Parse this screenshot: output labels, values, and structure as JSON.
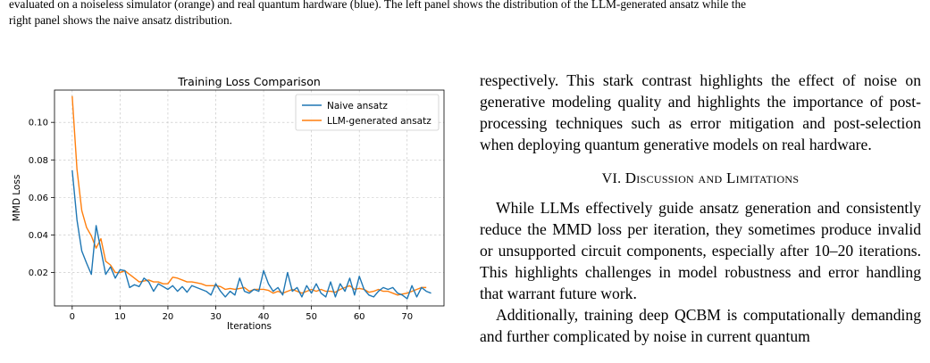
{
  "caption": {
    "line1": "evaluated on a noiseless simulator (orange) and real quantum hardware (blue). The left panel shows the distribution of the LLM-generated ansatz while the",
    "line2": "right panel shows the naive ansatz distribution."
  },
  "figure": {
    "title": "Training Loss Comparison",
    "xlabel": "Iterations",
    "ylabel": "MMD Loss"
  },
  "chart_data": {
    "type": "line",
    "title": "Training Loss Comparison",
    "xlabel": "Iterations",
    "ylabel": "MMD Loss",
    "xlim": [
      -3.7,
      77.7
    ],
    "ylim": [
      0.0022,
      0.1172
    ],
    "xticks": [
      0,
      10,
      20,
      30,
      40,
      50,
      60,
      70
    ],
    "yticks": [
      0.02,
      0.04,
      0.06,
      0.08,
      0.1
    ],
    "ytick_labels": [
      "0.02",
      "0.04",
      "0.06",
      "0.08",
      "0.10"
    ],
    "grid": true,
    "legend_position": "top-right",
    "series": [
      {
        "name": "Naive ansatz",
        "color": "#1f77b4",
        "values": [
          0.0745,
          0.048,
          0.0315,
          0.025,
          0.019,
          0.045,
          0.032,
          0.019,
          0.023,
          0.017,
          0.0215,
          0.021,
          0.012,
          0.0135,
          0.0125,
          0.017,
          0.015,
          0.01,
          0.014,
          0.0125,
          0.011,
          0.013,
          0.01,
          0.0125,
          0.0095,
          0.013,
          0.012,
          0.011,
          0.01,
          0.008,
          0.014,
          0.01,
          0.007,
          0.01,
          0.008,
          0.017,
          0.01,
          0.009,
          0.011,
          0.01,
          0.021,
          0.014,
          0.01,
          0.012,
          0.008,
          0.02,
          0.01,
          0.012,
          0.007,
          0.013,
          0.009,
          0.014,
          0.009,
          0.007,
          0.015,
          0.007,
          0.014,
          0.01,
          0.017,
          0.008,
          0.018,
          0.011,
          0.008,
          0.007,
          0.01,
          0.012,
          0.011,
          0.012,
          0.009,
          0.008,
          0.006,
          0.013,
          0.007,
          0.012,
          0.01,
          0.009
        ]
      },
      {
        "name": "LLM-generated ansatz",
        "color": "#ff7f0e",
        "values": [
          0.114,
          0.075,
          0.053,
          0.044,
          0.0395,
          0.033,
          0.038,
          0.026,
          0.024,
          0.02,
          0.02,
          0.021,
          0.019,
          0.017,
          0.015,
          0.0155,
          0.016,
          0.015,
          0.015,
          0.014,
          0.014,
          0.0175,
          0.017,
          0.016,
          0.015,
          0.015,
          0.0145,
          0.014,
          0.013,
          0.013,
          0.013,
          0.0125,
          0.011,
          0.0115,
          0.011,
          0.0115,
          0.012,
          0.01,
          0.011,
          0.011,
          0.011,
          0.0105,
          0.009,
          0.01,
          0.009,
          0.01,
          0.011,
          0.01,
          0.009,
          0.01,
          0.011,
          0.01,
          0.011,
          0.01,
          0.01,
          0.0095,
          0.011,
          0.012,
          0.013,
          0.011,
          0.0115,
          0.011,
          0.0095,
          0.01,
          0.011,
          0.01,
          0.01,
          0.009,
          0.008,
          0.0085,
          0.009,
          0.01,
          0.011,
          0.012,
          0.012
        ]
      }
    ]
  },
  "body": {
    "para1": "respectively. This stark contrast highlights the effect of noise on generative modeling quality and highlights the importance of post-processing techniques such as error mitigation and post-selection when deploying quantum generative models on real hardware.",
    "section_number": "VI.",
    "section_title": "Discussion and Limitations",
    "para2": "While LLMs effectively guide ansatz generation and consistently reduce the MMD loss per iteration, they sometimes produce invalid or unsupported circuit components, especially after 10–20 iterations. This highlights challenges in model robustness and error handling that warrant future work.",
    "para3": "Additionally, training deep QCBM is computationally demanding and further complicated by noise in current quantum"
  }
}
